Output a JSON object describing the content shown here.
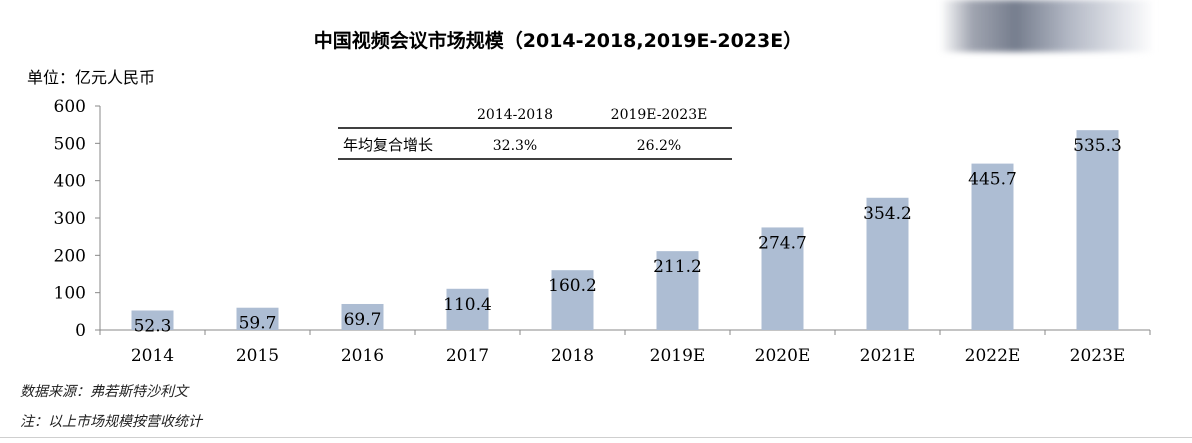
{
  "title": "中国视频会议市场规模（2014-2018,2019E-2023E）",
  "unit_label": "单位：亿元人民币",
  "growth_table": {
    "headers": [
      "2014-2018",
      "2019E-2023E"
    ],
    "row_label": "年均复合增长",
    "values": [
      "32.3%",
      "26.2%"
    ]
  },
  "chart_data": {
    "type": "bar",
    "categories": [
      "2014",
      "2015",
      "2016",
      "2017",
      "2018",
      "2019E",
      "2020E",
      "2021E",
      "2022E",
      "2023E"
    ],
    "values": [
      52.3,
      59.7,
      69.7,
      110.4,
      160.2,
      211.2,
      274.7,
      354.2,
      445.7,
      535.3
    ],
    "data_labels": [
      "52.3",
      "59.7",
      "69.7",
      "110.4",
      "160.2",
      "211.2",
      "274.7",
      "354.2",
      "445.7",
      "535.3"
    ],
    "yticks": [
      0,
      100,
      200,
      300,
      400,
      500,
      600
    ],
    "ylim": [
      0,
      600
    ],
    "bar_color": "#adbdd3",
    "grid": false
  },
  "source": "数据来源：弗若斯特沙利文",
  "note": "注：以上市场规模按营收统计"
}
